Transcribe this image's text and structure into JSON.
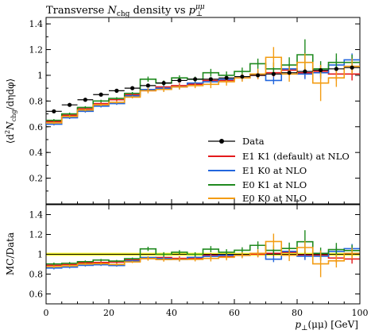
{
  "chart_data": [
    {
      "type": "line",
      "panel": "main",
      "title": "Transverse N_chg density vs p_⊥^μμ",
      "title_parts": {
        "pre": "Transverse ",
        "N": "N",
        "Nsub": "chg",
        "mid": " density vs ",
        "p": "p",
        "psub": "⊥",
        "psup": "μμ"
      },
      "ylabel": "⟨d²N_chg/dηdφ⟩",
      "ylabel_parts": {
        "pre": "⟨d",
        "sup": "2",
        "N": "N",
        "sub": "chg",
        "post": "/dηdφ⟩"
      },
      "xlim": [
        0,
        100
      ],
      "ylim": [
        0,
        1.45
      ],
      "yticks": [
        "0.2",
        "0.4",
        "0.6",
        "0.8",
        "1",
        "1.2",
        "1.4"
      ],
      "legend_position": "bottom-right",
      "bin_edges": [
        0,
        5,
        10,
        15,
        20,
        25,
        30,
        35,
        40,
        45,
        50,
        55,
        60,
        65,
        70,
        75,
        80,
        85,
        90,
        95,
        100
      ],
      "data": {
        "name": "Data",
        "x": [
          2.5,
          7.5,
          12.5,
          17.5,
          22.5,
          27.5,
          32.5,
          37.5,
          42.5,
          47.5,
          52.5,
          57.5,
          62.5,
          67.5,
          72.5,
          77.5,
          82.5,
          87.5,
          92.5,
          97.5
        ],
        "y": [
          0.72,
          0.77,
          0.81,
          0.85,
          0.88,
          0.9,
          0.92,
          0.94,
          0.96,
          0.97,
          0.97,
          0.98,
          0.99,
          1.0,
          1.01,
          1.02,
          1.03,
          1.04,
          1.05,
          1.06
        ],
        "err": [
          0.01,
          0.01,
          0.01,
          0.01,
          0.01,
          0.01,
          0.01,
          0.01,
          0.01,
          0.01,
          0.01,
          0.01,
          0.01,
          0.01,
          0.01,
          0.01,
          0.01,
          0.01,
          0.01,
          0.01
        ]
      },
      "series": [
        {
          "name": "E1 K1 (default) at NLO",
          "color": "#e41a1c",
          "values": [
            0.64,
            0.69,
            0.74,
            0.78,
            0.81,
            0.85,
            0.88,
            0.91,
            0.92,
            0.93,
            0.96,
            0.96,
            0.98,
            1.0,
            1.02,
            1.04,
            1.02,
            1.03,
            1.01,
            1.01
          ],
          "err": [
            0.01,
            0.01,
            0.01,
            0.01,
            0.01,
            0.01,
            0.01,
            0.01,
            0.02,
            0.02,
            0.02,
            0.02,
            0.02,
            0.03,
            0.03,
            0.04,
            0.04,
            0.05,
            0.05,
            0.05
          ]
        },
        {
          "name": "E1 K0 at NLO",
          "color": "#2266dd",
          "values": [
            0.62,
            0.67,
            0.72,
            0.76,
            0.78,
            0.84,
            0.89,
            0.9,
            0.91,
            0.94,
            0.95,
            0.97,
            0.98,
            1.01,
            0.96,
            1.05,
            1.01,
            1.02,
            1.08,
            1.12
          ],
          "err": [
            0.01,
            0.01,
            0.01,
            0.01,
            0.01,
            0.01,
            0.01,
            0.02,
            0.02,
            0.02,
            0.02,
            0.02,
            0.02,
            0.03,
            0.03,
            0.04,
            0.04,
            0.05,
            0.05,
            0.05
          ]
        },
        {
          "name": "E0 K1 at NLO",
          "color": "#1f8a1f",
          "values": [
            0.65,
            0.7,
            0.75,
            0.8,
            0.82,
            0.86,
            0.97,
            0.94,
            0.98,
            0.97,
            1.02,
            1.0,
            1.03,
            1.09,
            1.05,
            1.08,
            1.16,
            1.05,
            1.1,
            1.1
          ],
          "err": [
            0.01,
            0.01,
            0.01,
            0.01,
            0.01,
            0.01,
            0.02,
            0.02,
            0.02,
            0.02,
            0.03,
            0.03,
            0.03,
            0.04,
            0.05,
            0.06,
            0.12,
            0.06,
            0.07,
            0.06
          ]
        },
        {
          "name": "E0 K0 at NLO",
          "color": "#f39c12",
          "values": [
            0.63,
            0.68,
            0.73,
            0.77,
            0.79,
            0.83,
            0.88,
            0.89,
            0.91,
            0.92,
            0.93,
            0.95,
            0.98,
            1.01,
            1.14,
            1.01,
            1.1,
            0.94,
            0.98,
            1.07
          ],
          "err": [
            0.01,
            0.01,
            0.01,
            0.01,
            0.01,
            0.01,
            0.02,
            0.02,
            0.02,
            0.02,
            0.03,
            0.03,
            0.03,
            0.04,
            0.08,
            0.06,
            0.07,
            0.14,
            0.07,
            0.06
          ]
        }
      ]
    },
    {
      "type": "line",
      "panel": "ratio",
      "ylabel": "MC/Data",
      "xlabel": "p_⊥(μμ) [GeV]",
      "xlabel_parts": {
        "p": "p",
        "sub": "⊥",
        "post": "(μμ) [GeV]"
      },
      "xlim": [
        0,
        100
      ],
      "ylim": [
        0.5,
        1.5
      ],
      "xticks": [
        "0",
        "20",
        "40",
        "60",
        "80",
        "100"
      ],
      "yticks": [
        "0.6",
        "0.8",
        "1",
        "1.2",
        "1.4"
      ],
      "reference_band": {
        "center": 1.0,
        "halfwidth": 0.015,
        "color": "#ffff33"
      },
      "description": "ratio of each MC series to Data"
    }
  ]
}
